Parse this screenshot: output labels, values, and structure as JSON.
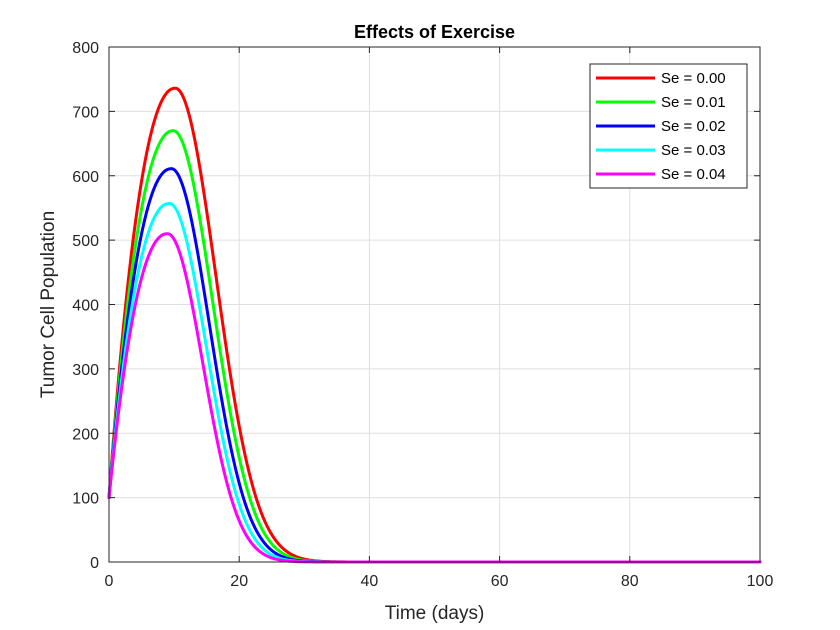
{
  "chart_data": {
    "type": "line",
    "title": "Effects of Exercise",
    "xlabel": "Time (days)",
    "ylabel": "Tumor Cell Population",
    "xlim": [
      0,
      100
    ],
    "ylim": [
      0,
      800
    ],
    "xticks": [
      0,
      20,
      40,
      60,
      80,
      100
    ],
    "yticks": [
      0,
      100,
      200,
      300,
      400,
      500,
      600,
      700,
      800
    ],
    "grid": true,
    "legend_position": "top-right",
    "series": [
      {
        "name": "Se = 0.00",
        "color": "#ff0000",
        "peak_x": 10.2,
        "peak_y": 736,
        "start_y": 100,
        "width_left": 5.5,
        "width_right": 6.2
      },
      {
        "name": "Se = 0.01",
        "color": "#00ff00",
        "peak_x": 9.9,
        "peak_y": 670,
        "start_y": 100,
        "width_left": 5.3,
        "width_right": 6.0
      },
      {
        "name": "Se = 0.02",
        "color": "#0000ff",
        "peak_x": 9.6,
        "peak_y": 611,
        "start_y": 100,
        "width_left": 5.1,
        "width_right": 5.8
      },
      {
        "name": "Se = 0.03",
        "color": "#00ffff",
        "peak_x": 9.3,
        "peak_y": 557,
        "start_y": 100,
        "width_left": 4.9,
        "width_right": 5.6
      },
      {
        "name": "Se = 0.04",
        "color": "#ff00ff",
        "peak_x": 9.0,
        "peak_y": 510,
        "start_y": 100,
        "width_left": 4.7,
        "width_right": 5.4
      }
    ]
  }
}
